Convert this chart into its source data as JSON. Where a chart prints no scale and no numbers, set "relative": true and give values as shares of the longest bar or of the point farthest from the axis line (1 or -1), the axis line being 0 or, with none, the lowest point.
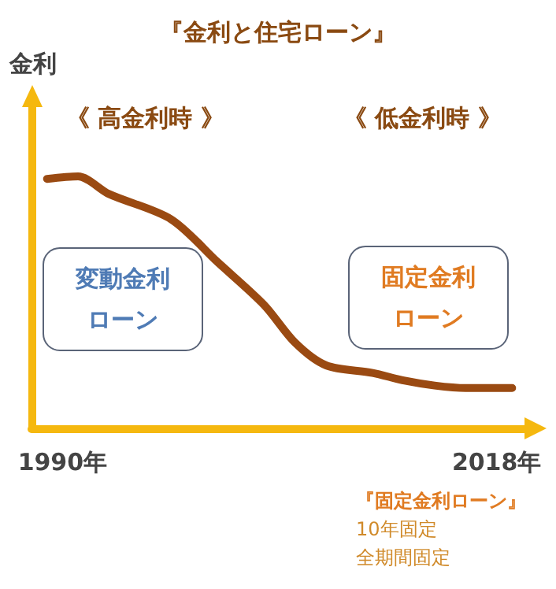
{
  "chart_data": {
    "type": "line",
    "title": "『金利と住宅ローン』",
    "ylabel": "金利",
    "relative": true,
    "x": [
      1989,
      1991,
      1993,
      1997,
      2000,
      2003,
      2005,
      2007,
      2010,
      2012,
      2014,
      2016,
      2019
    ],
    "series": [
      {
        "color": "#9a4a12",
        "values": [
          0.99,
          1,
          0.93,
          0.83,
          0.66,
          0.49,
          0.34,
          0.25,
          0.22,
          0.19,
          0.17,
          0.16,
          0.16
        ]
      }
    ],
    "xlim": [
      1988,
      2020
    ],
    "xticks": [
      {
        "value": 1990,
        "label": "1990年"
      },
      {
        "value": 2018,
        "label": "2018年"
      }
    ],
    "annotations": [
      "《 高金利時 》",
      "《 低金利時 》",
      "変動金利ローン",
      "固定金利ローン",
      "『固定金利ローン』",
      "10年固定",
      "全期間固定"
    ],
    "grid": false,
    "marker": "none",
    "line_style": "solid"
  }
}
